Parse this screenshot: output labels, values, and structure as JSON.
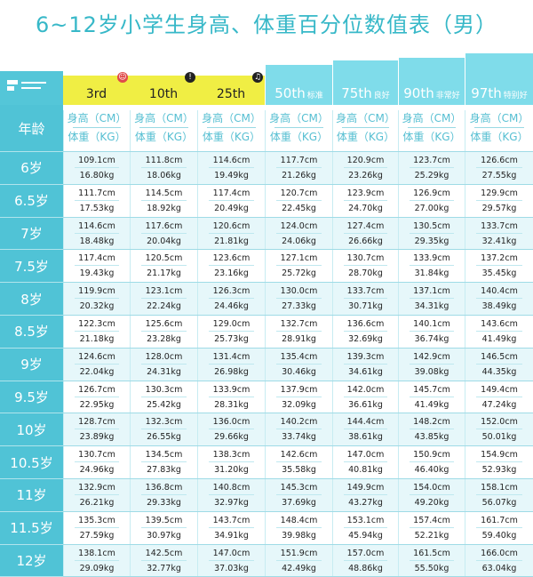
{
  "title": "6~12岁小学生身高、体重百分位数值表（男）",
  "header": {
    "percentiles": [
      {
        "label": "3rd",
        "tag": "",
        "color": "#f0ee44",
        "badge": "☺",
        "badge_color": "#e04b4b"
      },
      {
        "label": "10th",
        "tag": "",
        "color": "#f0ee44",
        "badge": "!",
        "badge_color": "#222222"
      },
      {
        "label": "25th",
        "tag": "",
        "color": "#f0ee44",
        "badge": "♫",
        "badge_color": "#222222"
      },
      {
        "label": "50th",
        "tag": "标准",
        "color": "#7fdcea",
        "badge": "",
        "badge_color": ""
      },
      {
        "label": "75th",
        "tag": "良好",
        "color": "#7fdcea",
        "badge": "",
        "badge_color": ""
      },
      {
        "label": "90th",
        "tag": "非常好",
        "color": "#7fdcea",
        "badge": "",
        "badge_color": ""
      },
      {
        "label": "97th",
        "tag": "特别好",
        "color": "#7fdcea",
        "badge": "",
        "badge_color": ""
      }
    ]
  },
  "age_header": "年龄",
  "height_label": "身高（CM）",
  "weight_label": "体重（KG）",
  "rows": [
    {
      "age": "6岁",
      "h": [
        "109.1cm",
        "111.8cm",
        "114.6cm",
        "117.7cm",
        "120.9cm",
        "123.7cm",
        "126.6cm"
      ],
      "w": [
        "16.80kg",
        "18.06kg",
        "19.49kg",
        "21.26kg",
        "23.26kg",
        "25.29kg",
        "27.55kg"
      ]
    },
    {
      "age": "6.5岁",
      "h": [
        "111.7cm",
        "114.5cm",
        "117.4cm",
        "120.7cm",
        "123.9cm",
        "126.9cm",
        "129.9cm"
      ],
      "w": [
        "17.53kg",
        "18.92kg",
        "20.49kg",
        "22.45kg",
        "24.70kg",
        "27.00kg",
        "29.57kg"
      ]
    },
    {
      "age": "7岁",
      "h": [
        "114.6cm",
        "117.6cm",
        "120.6cm",
        "124.0cm",
        "127.4cm",
        "130.5cm",
        "133.7cm"
      ],
      "w": [
        "18.48kg",
        "20.04kg",
        "21.81kg",
        "24.06kg",
        "26.66kg",
        "29.35kg",
        "32.41kg"
      ]
    },
    {
      "age": "7.5岁",
      "h": [
        "117.4cm",
        "120.5cm",
        "123.6cm",
        "127.1cm",
        "130.7cm",
        "133.9cm",
        "137.2cm"
      ],
      "w": [
        "19.43kg",
        "21.17kg",
        "23.16kg",
        "25.72kg",
        "28.70kg",
        "31.84kg",
        "35.45kg"
      ]
    },
    {
      "age": "8岁",
      "h": [
        "119.9cm",
        "123.1cm",
        "126.3cm",
        "130.0cm",
        "133.7cm",
        "137.1cm",
        "140.4cm"
      ],
      "w": [
        "20.32kg",
        "22.24kg",
        "24.46kg",
        "27.33kg",
        "30.71kg",
        "34.31kg",
        "38.49kg"
      ]
    },
    {
      "age": "8.5岁",
      "h": [
        "122.3cm",
        "125.6cm",
        "129.0cm",
        "132.7cm",
        "136.6cm",
        "140.1cm",
        "143.6cm"
      ],
      "w": [
        "21.18kg",
        "23.28kg",
        "25.73kg",
        "28.91kg",
        "32.69kg",
        "36.74kg",
        "41.49kg"
      ]
    },
    {
      "age": "9岁",
      "h": [
        "124.6cm",
        "128.0cm",
        "131.4cm",
        "135.4cm",
        "139.3cm",
        "142.9cm",
        "146.5cm"
      ],
      "w": [
        "22.04kg",
        "24.31kg",
        "26.98kg",
        "30.46kg",
        "34.61kg",
        "39.08kg",
        "44.35kg"
      ]
    },
    {
      "age": "9.5岁",
      "h": [
        "126.7cm",
        "130.3cm",
        "133.9cm",
        "137.9cm",
        "142.0cm",
        "145.7cm",
        "149.4cm"
      ],
      "w": [
        "22.95kg",
        "25.42kg",
        "28.31kg",
        "32.09kg",
        "36.61kg",
        "41.49kg",
        "47.24kg"
      ]
    },
    {
      "age": "10岁",
      "h": [
        "128.7cm",
        "132.3cm",
        "136.0cm",
        "140.2cm",
        "144.4cm",
        "148.2cm",
        "152.0cm"
      ],
      "w": [
        "23.89kg",
        "26.55kg",
        "29.66kg",
        "33.74kg",
        "38.61kg",
        "43.85kg",
        "50.01kg"
      ]
    },
    {
      "age": "10.5岁",
      "h": [
        "130.7cm",
        "134.5cm",
        "138.3cm",
        "142.6cm",
        "147.0cm",
        "150.9cm",
        "154.9cm"
      ],
      "w": [
        "24.96kg",
        "27.83kg",
        "31.20kg",
        "35.58kg",
        "40.81kg",
        "46.40kg",
        "52.93kg"
      ]
    },
    {
      "age": "11岁",
      "h": [
        "132.9cm",
        "136.8cm",
        "140.8cm",
        "145.3cm",
        "149.9cm",
        "154.0cm",
        "158.1cm"
      ],
      "w": [
        "26.21kg",
        "29.33kg",
        "32.97kg",
        "37.69kg",
        "43.27kg",
        "49.20kg",
        "56.07kg"
      ]
    },
    {
      "age": "11.5岁",
      "h": [
        "135.3cm",
        "139.5cm",
        "143.7cm",
        "148.4cm",
        "153.1cm",
        "157.4cm",
        "161.7cm"
      ],
      "w": [
        "27.59kg",
        "30.97kg",
        "34.91kg",
        "39.98kg",
        "45.94kg",
        "52.21kg",
        "59.40kg"
      ]
    },
    {
      "age": "12岁",
      "h": [
        "138.1cm",
        "142.5cm",
        "147.0cm",
        "151.9cm",
        "157.0cm",
        "161.5cm",
        "166.0cm"
      ],
      "w": [
        "29.09kg",
        "32.77kg",
        "37.03kg",
        "42.49kg",
        "48.86kg",
        "55.50kg",
        "63.04kg"
      ]
    }
  ]
}
